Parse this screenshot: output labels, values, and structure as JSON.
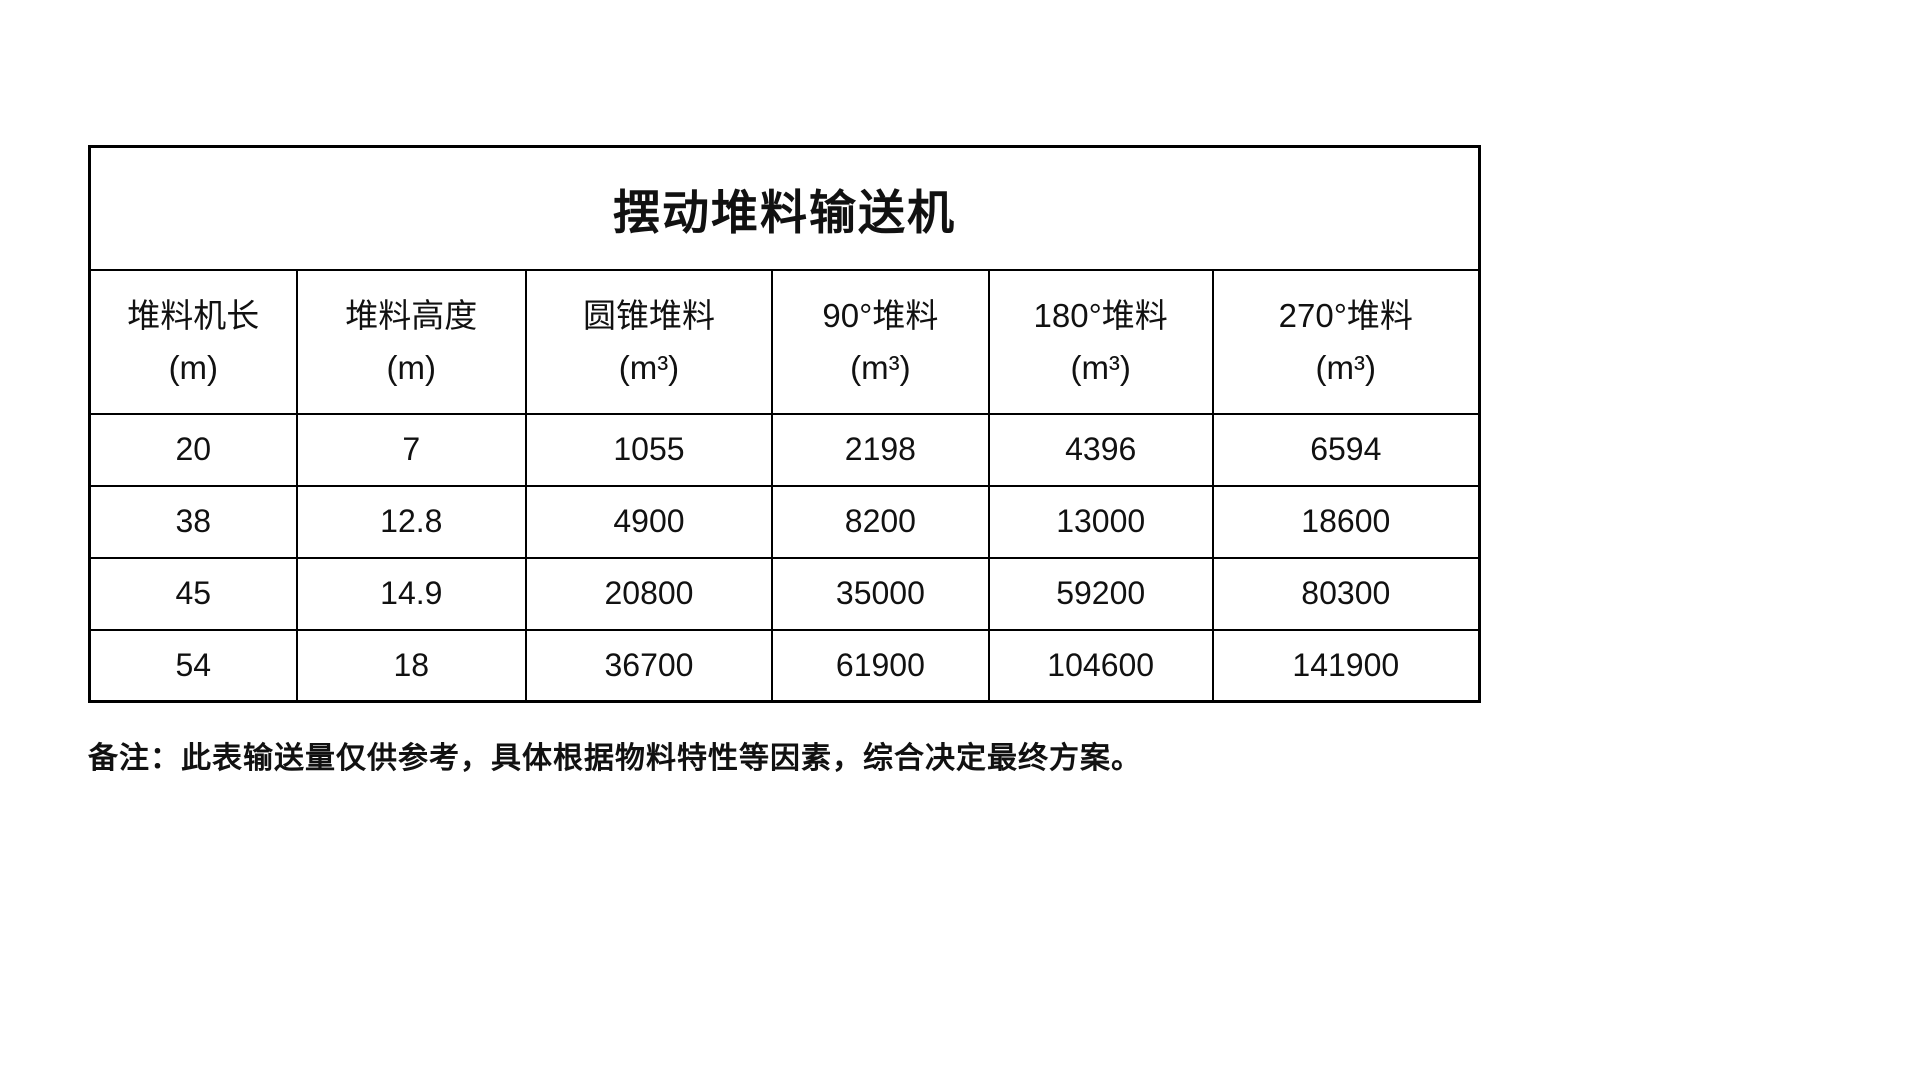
{
  "table": {
    "title": "摆动堆料输送机",
    "columns": [
      {
        "name": "堆料机长",
        "unit": "(m)"
      },
      {
        "name": "堆料高度",
        "unit": "(m)"
      },
      {
        "name": "圆锥堆料",
        "unit": "(m³)"
      },
      {
        "name": "90°堆料",
        "unit": "(m³)"
      },
      {
        "name": "180°堆料",
        "unit": "(m³)"
      },
      {
        "name": "270°堆料",
        "unit": "(m³)"
      }
    ],
    "rows": [
      [
        "20",
        "7",
        "1055",
        "2198",
        "4396",
        "6594"
      ],
      [
        "38",
        "12.8",
        "4900",
        "8200",
        "13000",
        "18600"
      ],
      [
        "45",
        "14.9",
        "20800",
        "35000",
        "59200",
        "80300"
      ],
      [
        "54",
        "18",
        "36700",
        "61900",
        "104600",
        "141900"
      ]
    ]
  },
  "note": "备注：此表输送量仅供参考，具体根据物料特性等因素，综合决定最终方案。",
  "chart_data": {
    "type": "table",
    "title": "摆动堆料输送机",
    "categories": [
      "堆料机长(m)",
      "堆料高度(m)",
      "圆锥堆料(m³)",
      "90°堆料(m³)",
      "180°堆料(m³)",
      "270°堆料(m³)"
    ],
    "series": [
      {
        "name": "row-1",
        "values": [
          20,
          7,
          1055,
          2198,
          4396,
          6594
        ]
      },
      {
        "name": "row-2",
        "values": [
          38,
          12.8,
          4900,
          8200,
          13000,
          18600
        ]
      },
      {
        "name": "row-3",
        "values": [
          45,
          14.9,
          20800,
          35000,
          59200,
          80300
        ]
      },
      {
        "name": "row-4",
        "values": [
          54,
          18,
          36700,
          61900,
          104600,
          141900
        ]
      }
    ]
  }
}
